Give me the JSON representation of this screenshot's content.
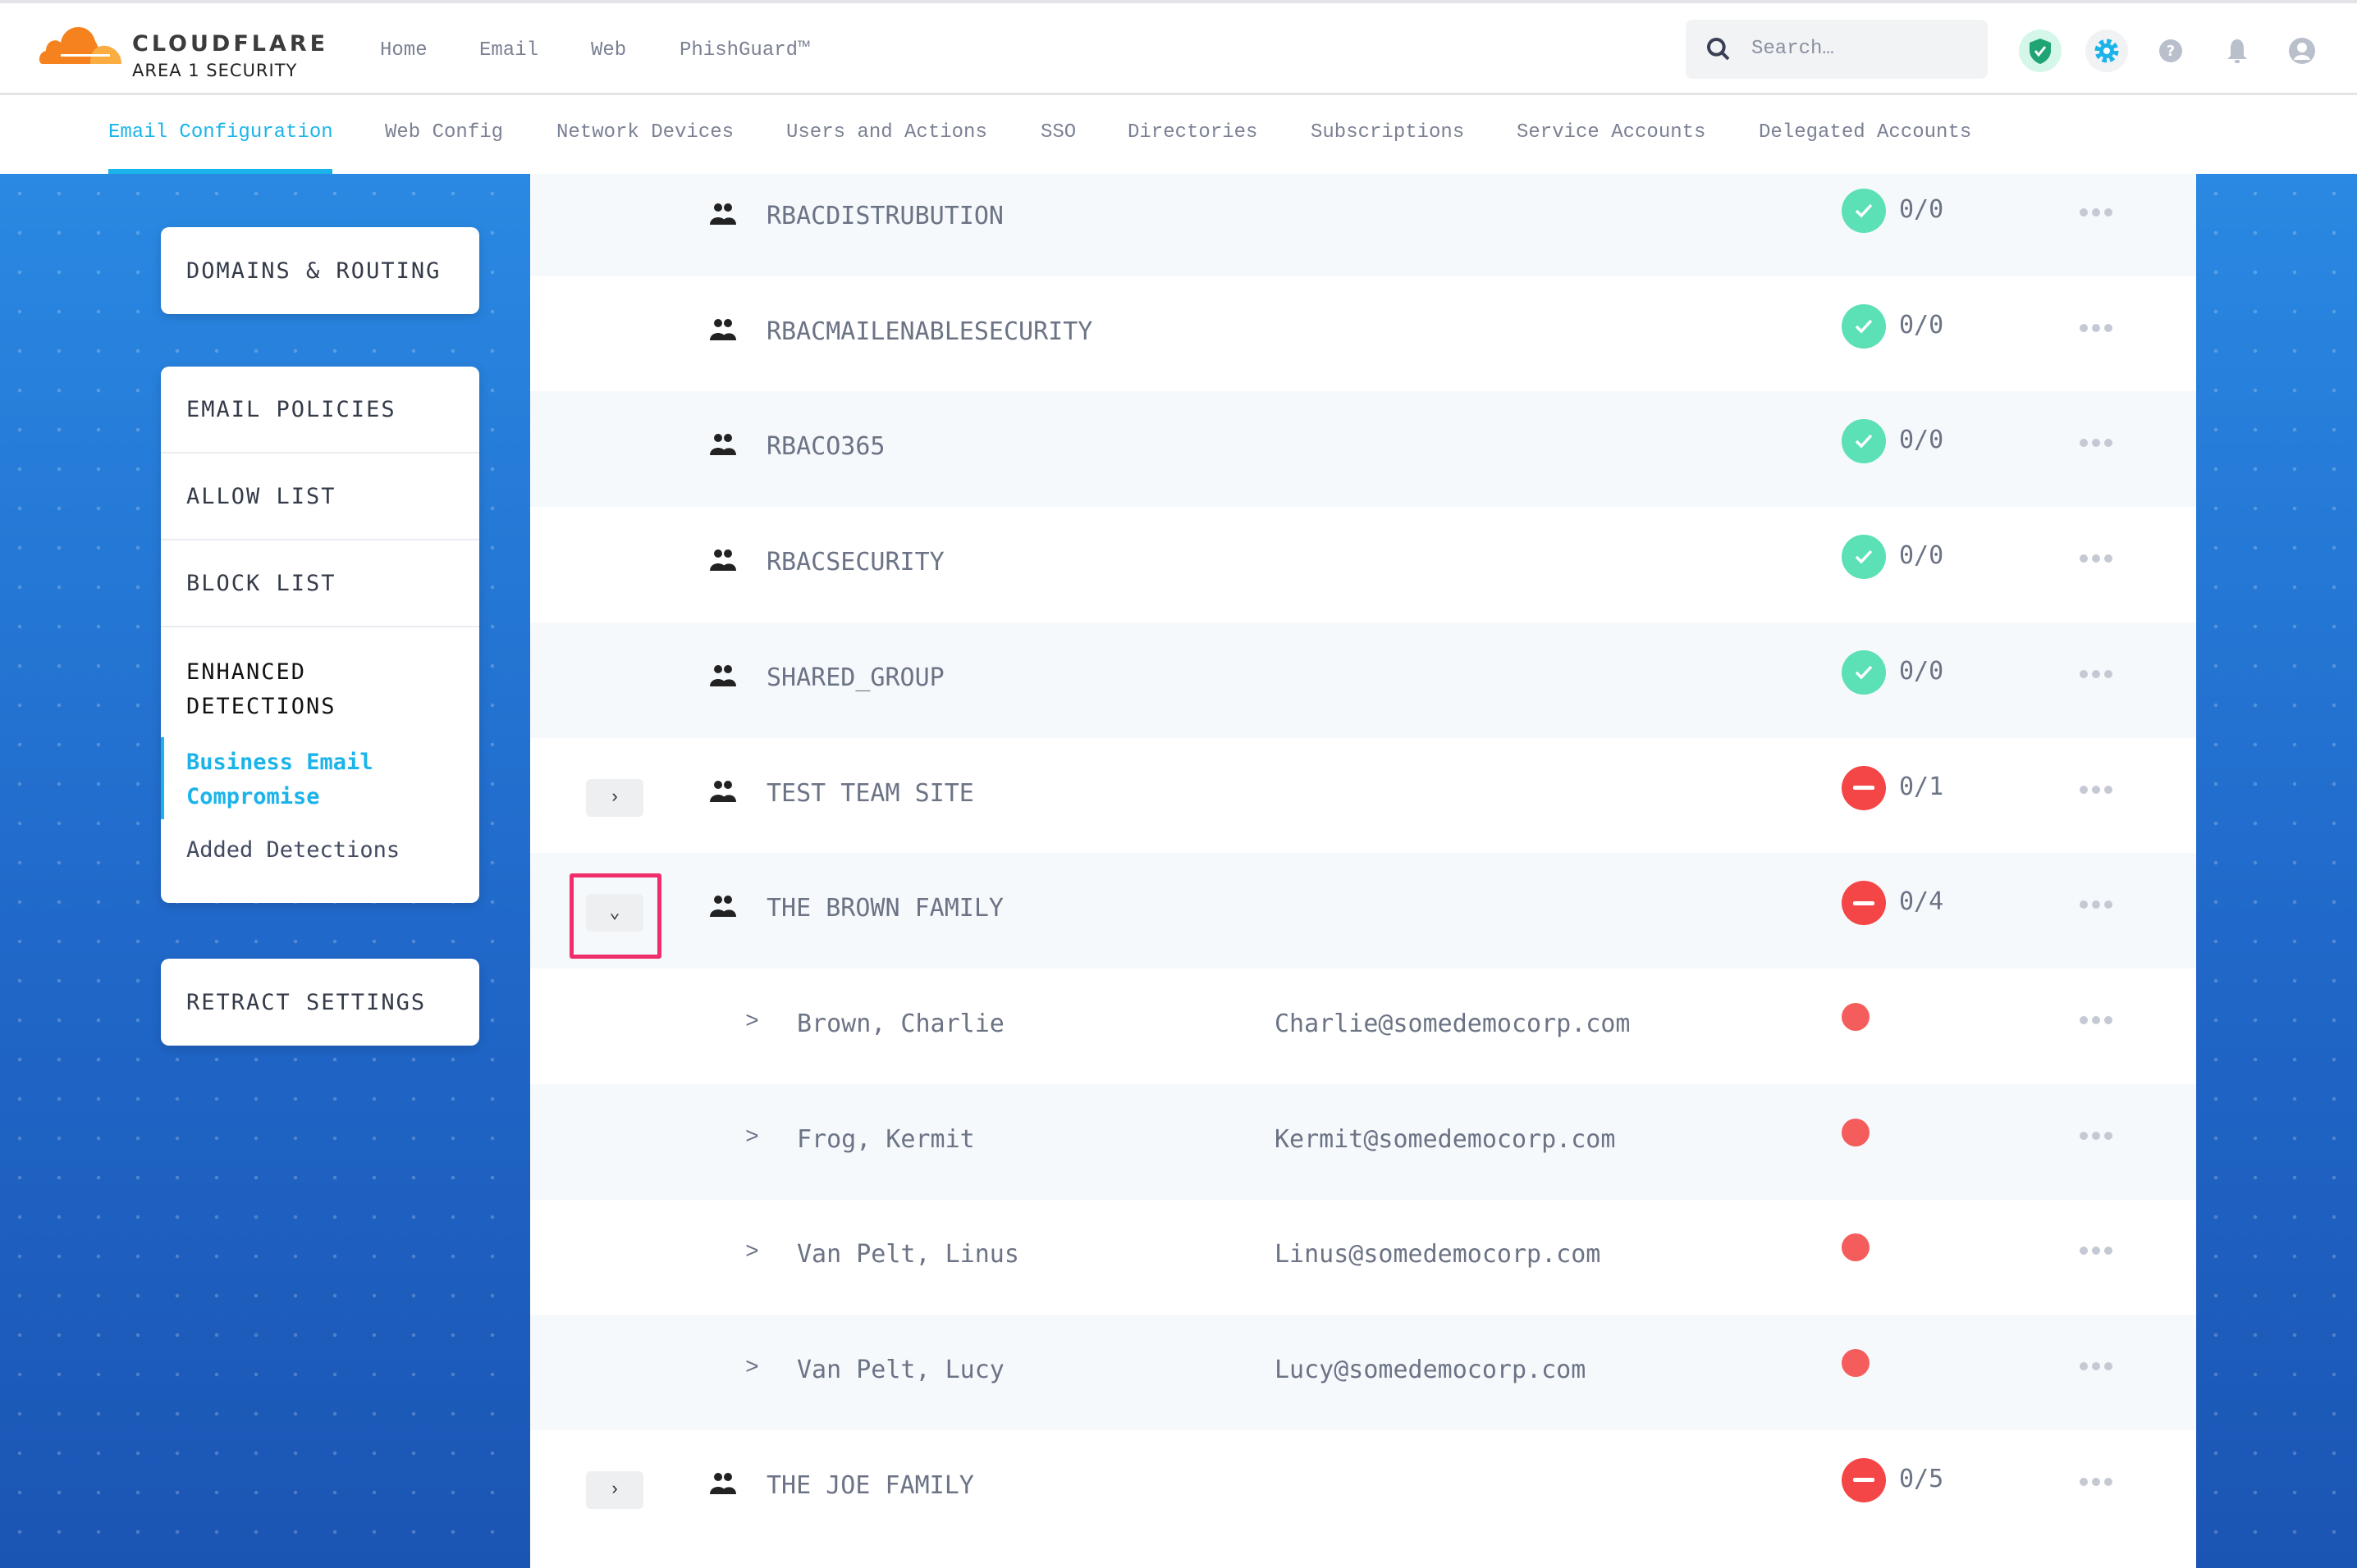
{
  "brand": {
    "name": "CLOUDFLARE",
    "product": "AREA 1 SECURITY"
  },
  "topnav": [
    "Home",
    "Email",
    "Web",
    "PhishGuard™"
  ],
  "search": {
    "placeholder": "Search…"
  },
  "header_icons": [
    "shield-check-icon",
    "gear-icon",
    "help-icon",
    "bell-icon",
    "user-icon"
  ],
  "tabs": [
    "Email Configuration",
    "Web Config",
    "Network Devices",
    "Users and Actions",
    "SSO",
    "Directories",
    "Subscriptions",
    "Service Accounts",
    "Delegated Accounts"
  ],
  "active_tab": "Email Configuration",
  "sidebar": {
    "domains": "DOMAINS & ROUTING",
    "email_policies": "EMAIL POLICIES",
    "allow_list": "ALLOW LIST",
    "block_list": "BLOCK LIST",
    "enhanced": "ENHANCED DETECTIONS",
    "bec": "Business Email Compromise",
    "added": "Added Detections",
    "retract": "RETRACT SETTINGS"
  },
  "colors": {
    "accent": "#1ab4ea",
    "ok": "#5ce0b6",
    "bad": "#f44646",
    "highlight": "#ef2e6a"
  },
  "rows": [
    {
      "type": "group",
      "name": "RBACDISTRUBUTION",
      "status": "ok",
      "count": "0/0"
    },
    {
      "type": "group",
      "name": "RBACMAILENABLESECURITY",
      "status": "ok",
      "count": "0/0"
    },
    {
      "type": "group",
      "name": "RBACO365",
      "status": "ok",
      "count": "0/0"
    },
    {
      "type": "group",
      "name": "RBACSECURITY",
      "status": "ok",
      "count": "0/0"
    },
    {
      "type": "group",
      "name": "SHARED_GROUP",
      "status": "ok",
      "count": "0/0"
    },
    {
      "type": "group",
      "name": "TEST TEAM SITE",
      "status": "bad",
      "count": "0/1",
      "expand": "collapsed"
    },
    {
      "type": "group",
      "name": "THE BROWN FAMILY",
      "status": "bad",
      "count": "0/4",
      "expand": "expanded",
      "highlighted": true
    },
    {
      "type": "member",
      "name": "Brown, Charlie",
      "email": "Charlie@somedemocorp.com"
    },
    {
      "type": "member",
      "name": "Frog, Kermit",
      "email": "Kermit@somedemocorp.com"
    },
    {
      "type": "member",
      "name": "Van Pelt, Linus",
      "email": "Linus@somedemocorp.com"
    },
    {
      "type": "member",
      "name": "Van Pelt, Lucy",
      "email": "Lucy@somedemocorp.com"
    },
    {
      "type": "group",
      "name": "THE JOE FAMILY",
      "status": "bad",
      "count": "0/5",
      "expand": "collapsed"
    }
  ]
}
